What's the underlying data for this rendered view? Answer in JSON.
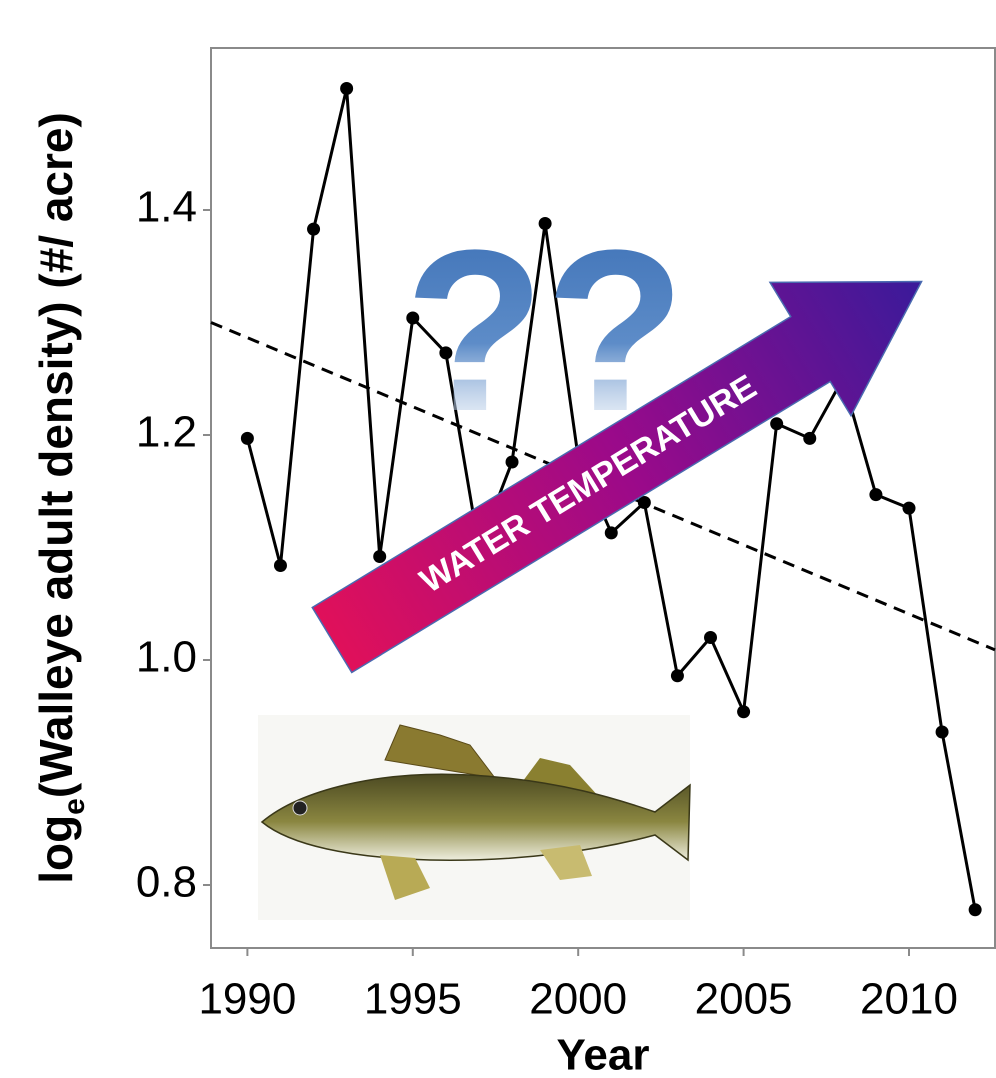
{
  "chart_data": {
    "type": "line",
    "ylabel_parts": [
      "log",
      "e",
      "(Walleye adult density) (#/ acre)"
    ],
    "xlabel": "Year",
    "annotations": [
      "WATER TEMPERATURE",
      "??"
    ],
    "x": [
      1990,
      1991,
      1992,
      1993,
      1994,
      1995,
      1996,
      1997,
      1998,
      1999,
      2000,
      2001,
      2002,
      2003,
      2004,
      2005,
      2006,
      2007,
      2008,
      2009,
      2010,
      2011,
      2012
    ],
    "values": [
      1.197,
      1.084,
      1.383,
      1.508,
      1.092,
      1.304,
      1.273,
      1.1,
      1.176,
      1.388,
      1.18,
      1.113,
      1.14,
      0.986,
      1.02,
      0.954,
      1.21,
      1.197,
      1.25,
      1.147,
      1.135,
      0.936,
      0.778
    ],
    "color": "#000000",
    "trend": {
      "x": [
        1988.9,
        2012.6
      ],
      "y": [
        1.3,
        1.009
      ],
      "color": "#000000"
    },
    "xlim": [
      1988.9,
      2012.6
    ],
    "ylim": [
      0.744,
      1.544
    ],
    "xticks": [
      1990,
      1995,
      2000,
      2005,
      2010
    ],
    "yticks": [
      0.8,
      {
        "value": 1,
        "label": "1.0"
      },
      1.2,
      1.4
    ],
    "grid": false
  }
}
